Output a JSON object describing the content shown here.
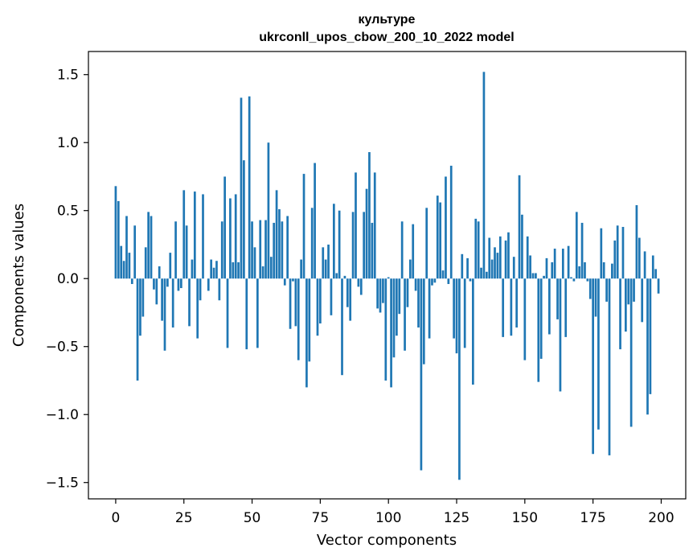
{
  "chart_data": {
    "type": "bar",
    "title": [
      "культуре",
      "ukrconll_upos_cbow_200_10_2022 model"
    ],
    "xlabel": "Vector components",
    "ylabel": "Components values",
    "xlim": [
      -10,
      209
    ],
    "ylim": [
      -1.62,
      1.67
    ],
    "xticks": [
      0,
      25,
      50,
      75,
      100,
      125,
      150,
      175,
      200
    ],
    "yticks": [
      -1.5,
      -1.0,
      -0.5,
      0.0,
      0.5,
      1.0,
      1.5
    ],
    "ytick_labels": [
      "−1.5",
      "−1.0",
      "−0.5",
      "0.0",
      "0.5",
      "1.0",
      "1.5"
    ],
    "bar_color": "#1f77b4",
    "values": [
      0.68,
      0.57,
      0.24,
      0.13,
      0.46,
      0.19,
      -0.04,
      0.39,
      -0.75,
      -0.42,
      -0.28,
      0.23,
      0.49,
      0.46,
      -0.08,
      -0.19,
      0.09,
      -0.31,
      -0.53,
      -0.06,
      0.19,
      -0.36,
      0.42,
      -0.09,
      -0.07,
      0.65,
      0.39,
      -0.35,
      0.14,
      0.64,
      -0.44,
      -0.16,
      0.62,
      0.0,
      -0.09,
      0.14,
      0.08,
      0.13,
      -0.16,
      0.42,
      0.75,
      -0.51,
      0.59,
      0.12,
      0.62,
      0.12,
      1.33,
      0.87,
      -0.52,
      1.34,
      0.42,
      0.23,
      -0.51,
      0.43,
      0.09,
      0.43,
      1.0,
      0.16,
      0.41,
      0.65,
      0.51,
      0.42,
      -0.05,
      0.46,
      -0.37,
      -0.02,
      -0.35,
      -0.6,
      0.14,
      0.77,
      -0.8,
      -0.61,
      0.52,
      0.85,
      -0.42,
      -0.33,
      0.23,
      0.14,
      0.25,
      -0.27,
      0.55,
      0.04,
      0.5,
      -0.71,
      0.02,
      -0.21,
      -0.31,
      0.49,
      0.78,
      -0.06,
      -0.12,
      0.49,
      0.66,
      0.93,
      0.41,
      0.78,
      -0.22,
      -0.25,
      -0.18,
      -0.75,
      0.01,
      -0.8,
      -0.58,
      -0.42,
      -0.26,
      0.42,
      -0.53,
      -0.21,
      0.14,
      0.4,
      -0.09,
      -0.36,
      -1.41,
      -0.63,
      0.52,
      -0.44,
      -0.05,
      -0.03,
      0.61,
      0.56,
      0.06,
      0.75,
      -0.04,
      0.83,
      -0.44,
      -0.55,
      -1.48,
      0.18,
      -0.51,
      0.15,
      -0.02,
      -0.78,
      0.44,
      0.42,
      0.08,
      1.52,
      0.05,
      0.3,
      0.14,
      0.23,
      0.19,
      0.31,
      -0.43,
      0.28,
      0.34,
      -0.42,
      0.16,
      -0.36,
      0.76,
      0.47,
      -0.6,
      0.31,
      0.17,
      0.04,
      0.04,
      -0.76,
      -0.59,
      0.02,
      0.15,
      -0.41,
      0.12,
      0.22,
      -0.3,
      -0.83,
      0.22,
      -0.43,
      0.24,
      0.01,
      -0.02,
      0.49,
      0.09,
      0.41,
      0.12,
      -0.02,
      -0.15,
      -1.29,
      -0.28,
      -1.11,
      0.37,
      0.12,
      -0.17,
      -1.3,
      0.11,
      0.28,
      0.39,
      -0.52,
      0.38,
      -0.39,
      -0.19,
      -1.09,
      -0.17,
      0.54,
      0.3,
      -0.32,
      0.2,
      -1.0,
      -0.85,
      0.17,
      0.07,
      -0.11
    ]
  }
}
